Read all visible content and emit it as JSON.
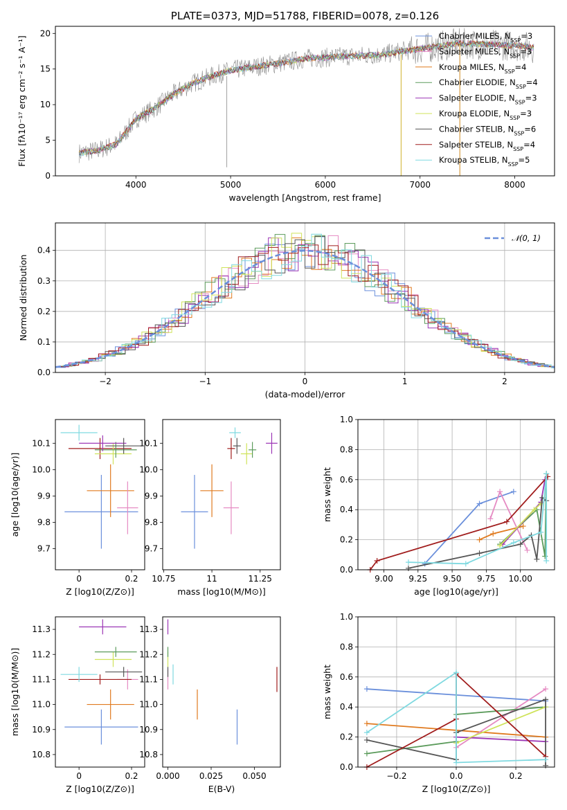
{
  "title": "PLATE=0373, MJD=51788, FIBERID=0078, z=0.126",
  "colors": {
    "blue": "#6a8fdb",
    "orange": "#e07a1f",
    "green": "#5b9b5b",
    "purple": "#9b35b5",
    "yellow": "#cfe35a",
    "gray": "#555555",
    "red": "#a01c1c",
    "cyan": "#7fd9e0",
    "pink": "#e58ac2"
  },
  "chart_data": [
    {
      "id": "spectrum",
      "type": "line",
      "xlabel": "wavelength [Angstrom, rest frame]",
      "ylabel": "Flux [fλ10⁻¹⁷ erg cm⁻² s⁻¹ A⁻¹]",
      "xlim": [
        3150,
        8420
      ],
      "ylim": [
        0,
        21
      ],
      "xticks": [
        4000,
        5000,
        6000,
        7000,
        8000
      ],
      "yticks": [
        0,
        5,
        10,
        15,
        20
      ],
      "grid": false,
      "legend": "upper right",
      "series": [
        {
          "name": "Chabrier MILES, N_SSP=3",
          "color": "#6a8fdb"
        },
        {
          "name": "Salpeter MILES, N_SSP=3",
          "color": "#e58ac2"
        },
        {
          "name": "Kroupa MILES, N_SSP=4",
          "color": "#e07a1f"
        },
        {
          "name": "Chabrier ELODIE, N_SSP=4",
          "color": "#5b9b5b"
        },
        {
          "name": "Salpeter ELODIE, N_SSP=3",
          "color": "#9b35b5"
        },
        {
          "name": "Kroupa ELODIE, N_SSP=3",
          "color": "#cfe35a"
        },
        {
          "name": "Chabrier STELIB, N_SSP=6",
          "color": "#555555"
        },
        {
          "name": "Salpeter STELIB, N_SSP=4",
          "color": "#a01c1c"
        },
        {
          "name": "Kroupa STELIB, N_SSP=5",
          "color": "#7fd9e0"
        }
      ],
      "continuum": {
        "x": [
          3400,
          3600,
          3800,
          4000,
          4200,
          4400,
          4600,
          4800,
          5000,
          5200,
          5400,
          5600,
          5800,
          6000,
          6200,
          6400,
          6600,
          6800,
          7000,
          7200,
          7400,
          7600,
          7800,
          8000,
          8200
        ],
        "y": [
          3.2,
          3.6,
          4.5,
          8.0,
          9.5,
          11.5,
          13.0,
          14.0,
          14.8,
          15.2,
          15.6,
          16.0,
          16.5,
          16.6,
          16.8,
          16.9,
          17.0,
          17.5,
          17.8,
          18.2,
          18.6,
          18.5,
          18.4,
          18.3,
          18.0
        ]
      }
    },
    {
      "id": "residuals",
      "type": "line",
      "xlabel": "(data-model)/error",
      "ylabel": "Normed distribution",
      "xlim": [
        -2.5,
        2.5
      ],
      "ylim": [
        0,
        0.49
      ],
      "xticks": [
        -2,
        -1,
        0,
        1,
        2
      ],
      "xticklabels": [
        "−2",
        "−1",
        "0",
        "1",
        "2"
      ],
      "yticks": [
        0.0,
        0.1,
        0.2,
        0.3,
        0.4
      ],
      "grid": true,
      "legend": "upper right",
      "legend_label": "𝒩(0, 1)"
    },
    {
      "id": "age-vs-Z",
      "type": "scatter",
      "xlabel": "Z [log10(Z/Z⊙)]",
      "ylabel": "age  [log10(age/yr)]",
      "xlim": [
        -0.09,
        0.25
      ],
      "ylim": [
        9.62,
        10.19
      ],
      "xticks": [
        0.0,
        0.2
      ],
      "yticks": [
        9.7,
        9.8,
        9.9,
        10.0,
        10.1
      ],
      "points": [
        {
          "color": "#6a8fdb",
          "x": 0.085,
          "xerr": 0.14,
          "y": 9.84,
          "yerr": 0.14
        },
        {
          "color": "#e07a1f",
          "x": 0.12,
          "xerr": 0.09,
          "y": 9.92,
          "yerr": 0.1
        },
        {
          "color": "#e58ac2",
          "x": 0.185,
          "xerr": 0.04,
          "y": 9.855,
          "yerr": 0.1
        },
        {
          "color": "#a01c1c",
          "x": 0.08,
          "xerr": 0.12,
          "y": 10.08,
          "yerr": 0.04
        },
        {
          "color": "#cfe35a",
          "x": 0.13,
          "xerr": 0.07,
          "y": 10.06,
          "yerr": 0.04
        },
        {
          "color": "#5b9b5b",
          "x": 0.14,
          "xerr": 0.08,
          "y": 10.075,
          "yerr": 0.03
        },
        {
          "color": "#9b35b5",
          "x": 0.09,
          "xerr": 0.09,
          "y": 10.1,
          "yerr": 0.03
        },
        {
          "color": "#555555",
          "x": 0.17,
          "xerr": 0.07,
          "y": 10.09,
          "yerr": 0.03
        },
        {
          "color": "#7fd9e0",
          "x": 0.0,
          "xerr": 0.07,
          "y": 10.14,
          "yerr": 0.03
        }
      ]
    },
    {
      "id": "age-vs-mass",
      "type": "scatter",
      "xlabel": "mass [log10(M/M⊙)]",
      "xlim": [
        10.745,
        11.355
      ],
      "ylim": [
        9.62,
        10.19
      ],
      "xticks": [
        10.75,
        11.0,
        11.25
      ],
      "yticks": [
        9.7,
        9.8,
        9.9,
        10.0,
        10.1
      ],
      "points": [
        {
          "color": "#6a8fdb",
          "x": 10.91,
          "xerr": 0.07,
          "y": 9.84,
          "yerr": 0.14
        },
        {
          "color": "#e07a1f",
          "x": 11.0,
          "xerr": 0.06,
          "y": 9.92,
          "yerr": 0.1
        },
        {
          "color": "#e58ac2",
          "x": 11.1,
          "xerr": 0.04,
          "y": 9.855,
          "yerr": 0.1
        },
        {
          "color": "#a01c1c",
          "x": 11.1,
          "xerr": 0.02,
          "y": 10.08,
          "yerr": 0.04
        },
        {
          "color": "#cfe35a",
          "x": 11.18,
          "xerr": 0.03,
          "y": 10.06,
          "yerr": 0.04
        },
        {
          "color": "#5b9b5b",
          "x": 11.21,
          "xerr": 0.02,
          "y": 10.075,
          "yerr": 0.03
        },
        {
          "color": "#9b35b5",
          "x": 11.31,
          "xerr": 0.03,
          "y": 10.1,
          "yerr": 0.04
        },
        {
          "color": "#555555",
          "x": 11.13,
          "xerr": 0.02,
          "y": 10.09,
          "yerr": 0.03
        },
        {
          "color": "#7fd9e0",
          "x": 11.12,
          "xerr": 0.03,
          "y": 10.14,
          "yerr": 0.02
        }
      ]
    },
    {
      "id": "massweight-vs-age",
      "type": "line",
      "xlabel": "age  [log10(age/yr)]",
      "ylabel": "mass weight",
      "xlim": [
        8.81,
        10.25
      ],
      "ylim": [
        0,
        1.0
      ],
      "xticks": [
        9.0,
        9.25,
        9.5,
        9.75,
        10.0
      ],
      "xticklabels": [
        "9.00",
        "9.25",
        "9.50",
        "9.75",
        "10.00"
      ],
      "yticks": [
        0.0,
        0.2,
        0.4,
        0.6,
        0.8,
        1.0
      ],
      "grid": true,
      "series": [
        {
          "color": "#6a8fdb",
          "x": [
            9.3,
            9.7,
            9.95
          ],
          "y": [
            0.04,
            0.44,
            0.52
          ]
        },
        {
          "color": "#e07a1f",
          "x": [
            9.7,
            9.8,
            10.02
          ],
          "y": [
            0.2,
            0.24,
            0.29
          ]
        },
        {
          "color": "#e58ac2",
          "x": [
            9.78,
            9.85,
            10.05
          ],
          "y": [
            0.34,
            0.52,
            0.13
          ]
        },
        {
          "color": "#5b9b5b",
          "x": [
            9.85,
            10.12,
            10.18,
            10.19
          ],
          "y": [
            0.17,
            0.4,
            0.09,
            0.64
          ]
        },
        {
          "color": "#9b35b5",
          "x": [
            9.87,
            10.15,
            10.18
          ],
          "y": [
            0.17,
            0.45,
            0.6
          ]
        },
        {
          "color": "#cfe35a",
          "x": [
            9.85,
            10.1,
            10.15
          ],
          "y": [
            0.16,
            0.4,
            0.44
          ]
        },
        {
          "color": "#555555",
          "x": [
            9.18,
            9.7,
            10.0,
            10.08,
            10.12,
            10.16,
            10.19
          ],
          "y": [
            0.01,
            0.11,
            0.17,
            0.23,
            0.07,
            0.48,
            0.46
          ]
        },
        {
          "color": "#a01c1c",
          "x": [
            8.9,
            8.95,
            9.9,
            10.2
          ],
          "y": [
            0.0,
            0.06,
            0.32,
            0.62
          ]
        },
        {
          "color": "#7fd9e0",
          "x": [
            9.18,
            9.6,
            9.95,
            10.15,
            10.19,
            10.19
          ],
          "y": [
            0.05,
            0.04,
            0.18,
            0.25,
            0.64,
            0.06
          ]
        }
      ]
    },
    {
      "id": "mass-vs-Z",
      "type": "scatter",
      "xlabel": "Z [log10(Z/Z⊙)]",
      "ylabel": "mass [log10(M/M⊙)]",
      "xlim": [
        -0.09,
        0.25
      ],
      "ylim": [
        10.75,
        11.35
      ],
      "xticks": [
        0.0,
        0.2
      ],
      "yticks": [
        10.8,
        10.9,
        11.0,
        11.1,
        11.2,
        11.3
      ],
      "points": [
        {
          "color": "#6a8fdb",
          "x": 0.085,
          "xerr": 0.14,
          "y": 10.91,
          "yerr": 0.07
        },
        {
          "color": "#e07a1f",
          "x": 0.12,
          "xerr": 0.09,
          "y": 11.0,
          "yerr": 0.06
        },
        {
          "color": "#e58ac2",
          "x": 0.185,
          "xerr": 0.04,
          "y": 11.1,
          "yerr": 0.04
        },
        {
          "color": "#a01c1c",
          "x": 0.08,
          "xerr": 0.12,
          "y": 11.1,
          "yerr": 0.02
        },
        {
          "color": "#cfe35a",
          "x": 0.13,
          "xerr": 0.07,
          "y": 11.18,
          "yerr": 0.03
        },
        {
          "color": "#5b9b5b",
          "x": 0.14,
          "xerr": 0.08,
          "y": 11.21,
          "yerr": 0.02
        },
        {
          "color": "#9b35b5",
          "x": 0.09,
          "xerr": 0.09,
          "y": 11.31,
          "yerr": 0.03
        },
        {
          "color": "#555555",
          "x": 0.17,
          "xerr": 0.07,
          "y": 11.13,
          "yerr": 0.02
        },
        {
          "color": "#7fd9e0",
          "x": 0.0,
          "xerr": 0.07,
          "y": 11.12,
          "yerr": 0.03
        }
      ]
    },
    {
      "id": "mass-vs-EBV",
      "type": "scatter",
      "xlabel": "E(B-V)",
      "xlim": [
        -0.003,
        0.065
      ],
      "ylim": [
        10.75,
        11.35
      ],
      "xticks": [
        0.0,
        0.025,
        0.05
      ],
      "xticklabels": [
        "0.000",
        "0.025",
        "0.050"
      ],
      "yticks": [
        10.8,
        10.9,
        11.0,
        11.1,
        11.2,
        11.3
      ],
      "points": [
        {
          "color": "#6a8fdb",
          "x": 0.04,
          "y": 10.91,
          "yerr": 0.07
        },
        {
          "color": "#e07a1f",
          "x": 0.017,
          "y": 11.0,
          "yerr": 0.06
        },
        {
          "color": "#e58ac2",
          "x": 0.0,
          "y": 11.1,
          "yerr": 0.04
        },
        {
          "color": "#a01c1c",
          "x": 0.063,
          "y": 11.1,
          "yerr": 0.05
        },
        {
          "color": "#cfe35a",
          "x": 0.0,
          "y": 11.18,
          "yerr": 0.03
        },
        {
          "color": "#5b9b5b",
          "x": 0.0,
          "y": 11.21,
          "yerr": 0.02
        },
        {
          "color": "#9b35b5",
          "x": 0.0,
          "y": 11.31,
          "yerr": 0.03
        },
        {
          "color": "#555555",
          "x": 0.0,
          "y": 11.13,
          "yerr": 0.02
        },
        {
          "color": "#7fd9e0",
          "x": 0.003,
          "y": 11.12,
          "yerr": 0.04
        }
      ]
    },
    {
      "id": "massweight-vs-Z",
      "type": "line",
      "xlabel": "Z [log10(Z/Z⊙)]",
      "ylabel": "mass weight",
      "xlim": [
        -0.33,
        0.33
      ],
      "ylim": [
        0,
        1.0
      ],
      "xticks": [
        -0.2,
        0.0,
        0.2
      ],
      "xticklabels": [
        "−0.2",
        "0.0",
        "0.2"
      ],
      "yticks": [
        0.0,
        0.2,
        0.4,
        0.6,
        0.8,
        1.0
      ],
      "grid": true,
      "series": [
        {
          "color": "#6a8fdb",
          "x": [
            -0.3,
            0.3
          ],
          "y": [
            0.52,
            0.44
          ]
        },
        {
          "color": "#e07a1f",
          "x": [
            -0.3,
            0.3
          ],
          "y": [
            0.29,
            0.2
          ]
        },
        {
          "color": "#e58ac2",
          "x": [
            0.0,
            0.3
          ],
          "y": [
            0.13,
            0.52
          ]
        },
        {
          "color": "#5b9b5b",
          "x": [
            -0.3,
            0.0,
            0.0,
            0.3
          ],
          "y": [
            0.09,
            0.17,
            0.35,
            0.4
          ]
        },
        {
          "color": "#9b35b5",
          "x": [
            0.0,
            0.3
          ],
          "y": [
            0.2,
            0.17
          ]
        },
        {
          "color": "#cfe35a",
          "x": [
            0.0,
            0.3
          ],
          "y": [
            0.16,
            0.4
          ]
        },
        {
          "color": "#555555",
          "x": [
            -0.3,
            0.0,
            0.0,
            0.3,
            0.3
          ],
          "y": [
            0.18,
            0.05,
            0.23,
            0.45,
            0.01
          ]
        },
        {
          "color": "#a01c1c",
          "x": [
            -0.3,
            0.0,
            0.0,
            0.3
          ],
          "y": [
            0.0,
            0.32,
            0.62,
            0.07
          ]
        },
        {
          "color": "#7fd9e0",
          "x": [
            -0.3,
            0.0,
            0.0,
            0.3
          ],
          "y": [
            0.23,
            0.63,
            0.03,
            0.05
          ]
        }
      ]
    }
  ]
}
